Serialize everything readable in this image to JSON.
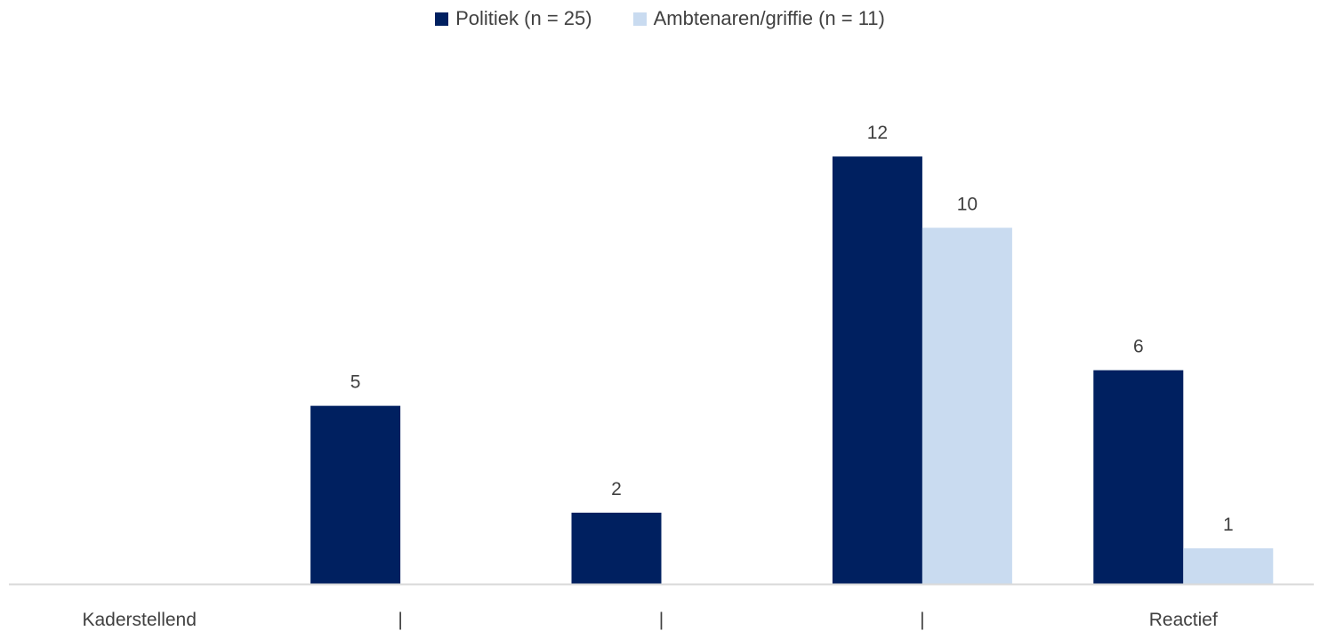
{
  "chart_data": {
    "type": "bar",
    "categories": [
      "Kaderstellend",
      "|",
      "|",
      "|",
      "Reactief"
    ],
    "series": [
      {
        "name": "Politiek (n = 25)",
        "color": "#002060",
        "values": [
          0,
          5,
          2,
          12,
          6
        ],
        "labels": [
          "",
          "5",
          "2",
          "12",
          "6"
        ]
      },
      {
        "name": "Ambtenaren/griffie (n = 11)",
        "color": "#C9DBF0",
        "values": [
          0,
          0,
          0,
          10,
          1
        ],
        "labels": [
          "",
          "",
          "",
          "10",
          "1"
        ]
      }
    ],
    "title": "",
    "xlabel": "",
    "ylabel": "",
    "ylim": [
      0,
      13.5
    ],
    "grid": false,
    "legend_position": "top-center"
  }
}
